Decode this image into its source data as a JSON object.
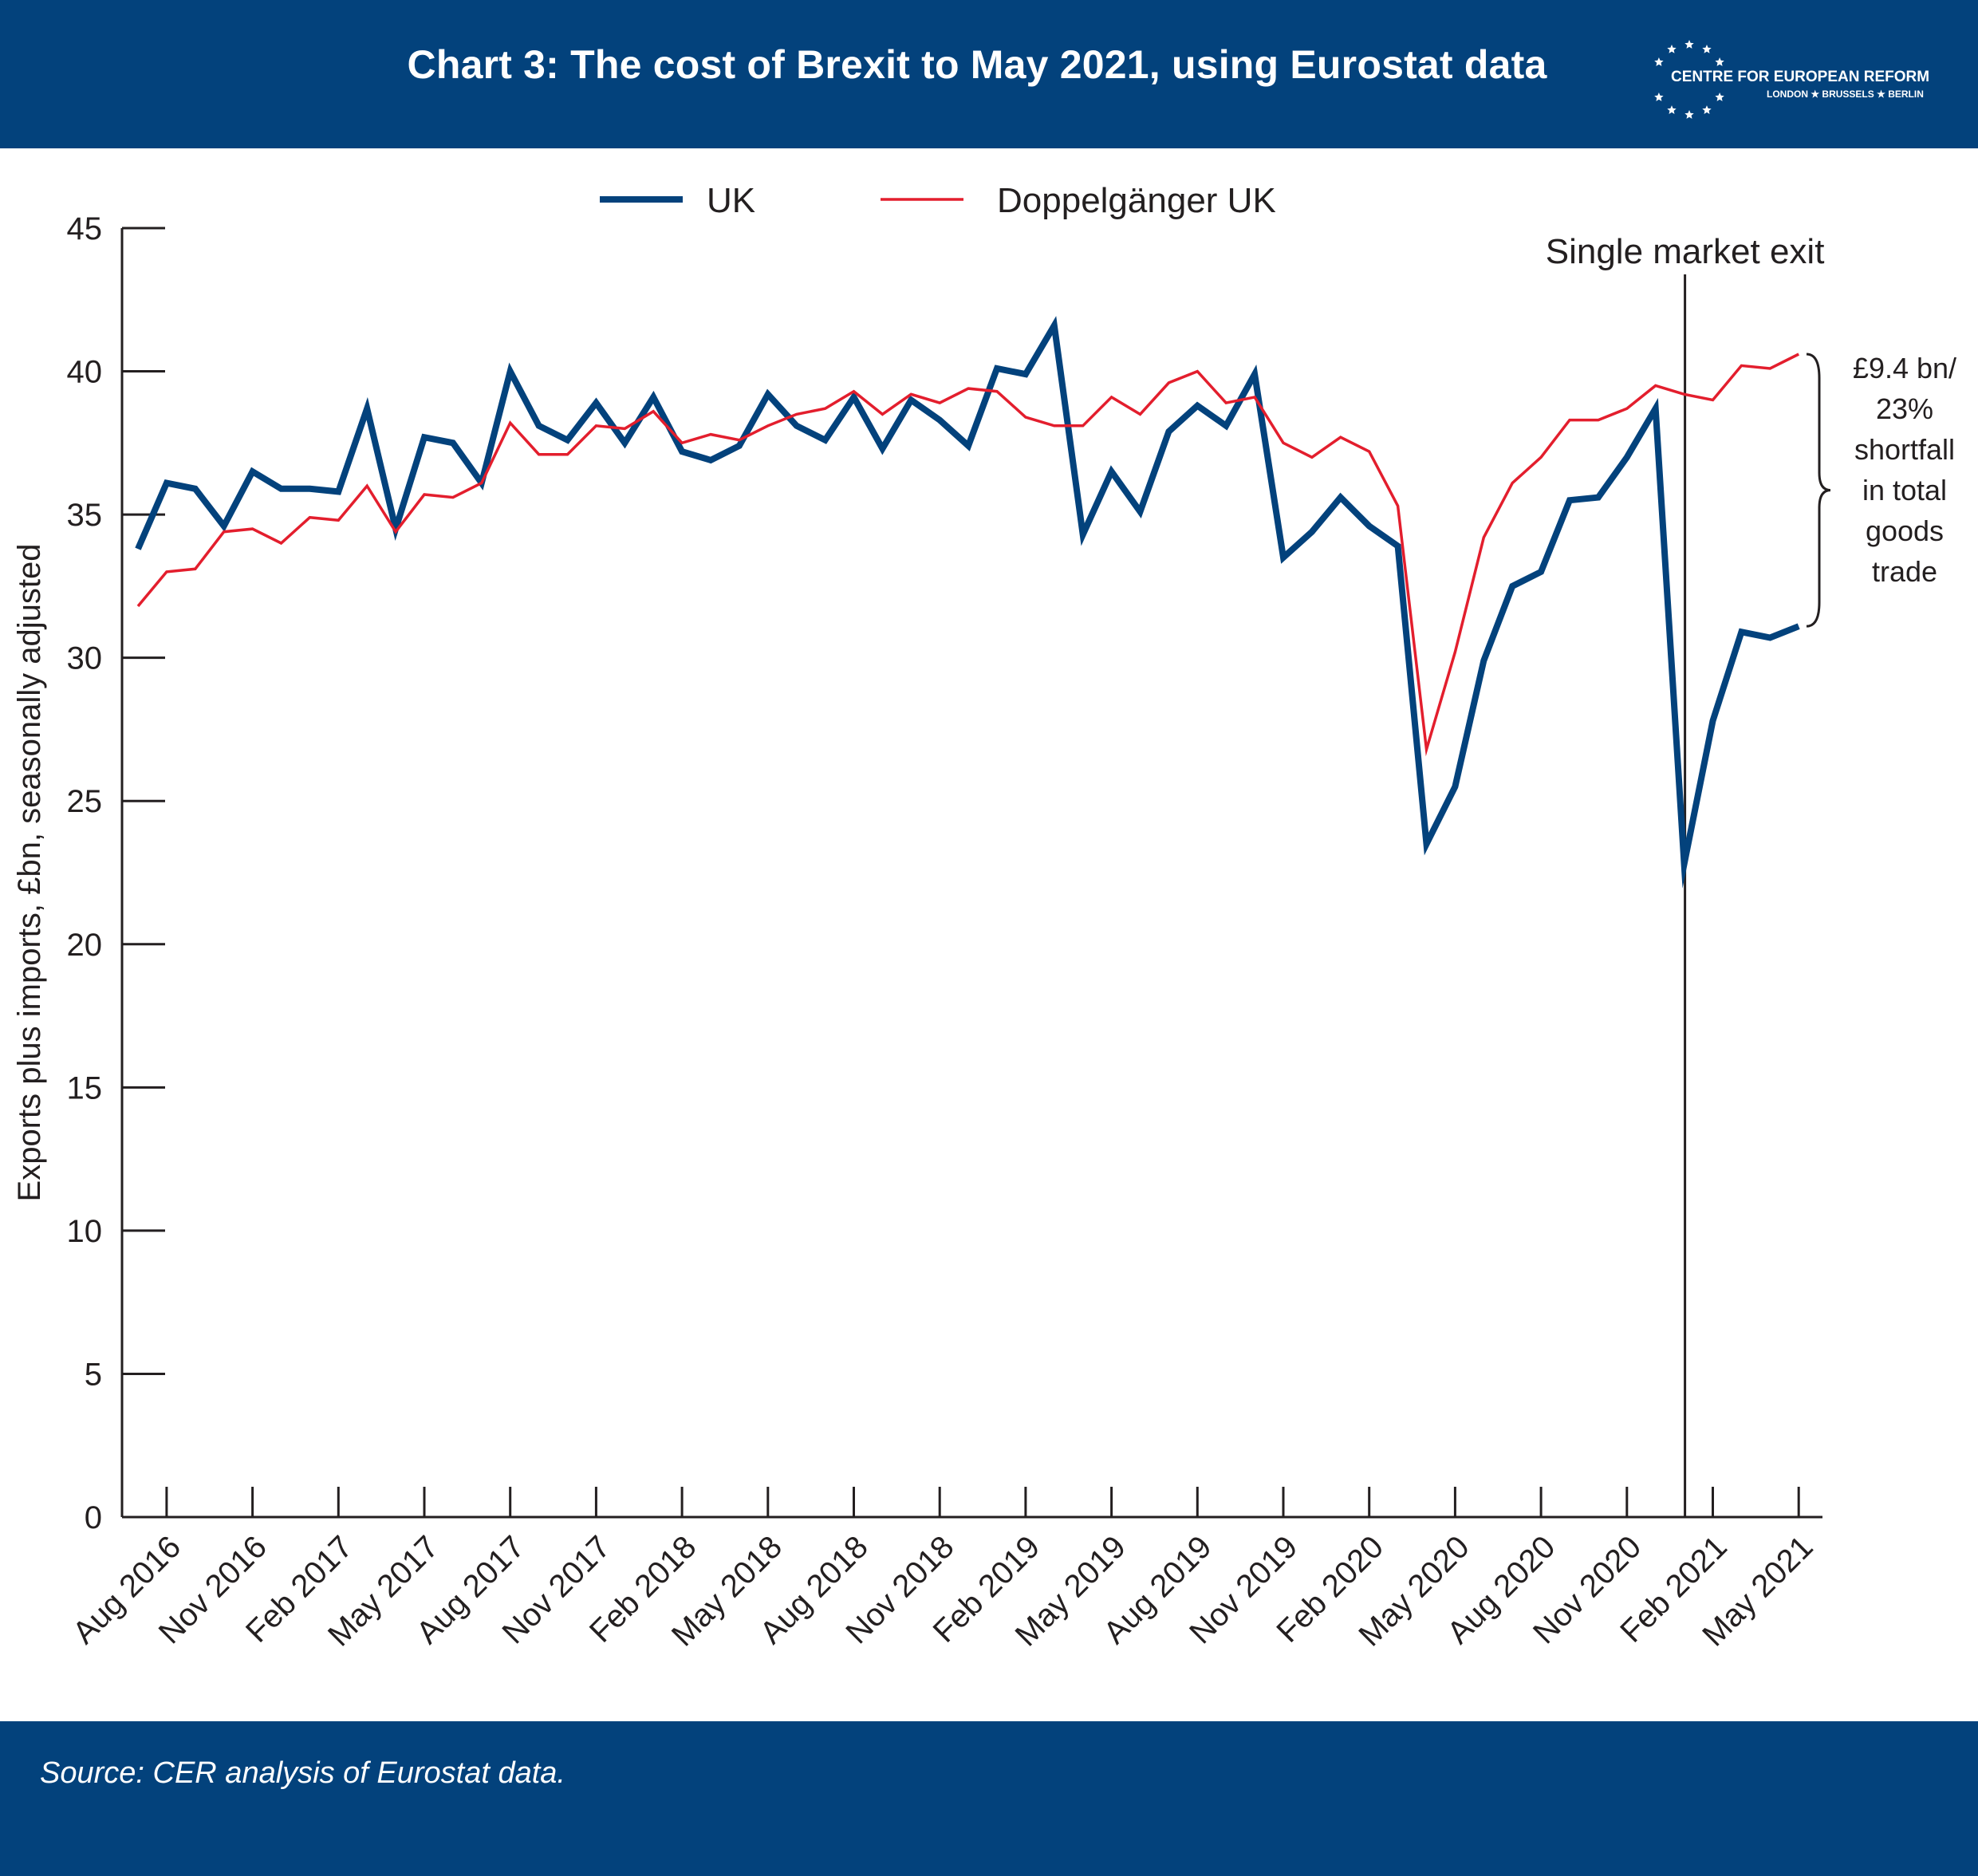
{
  "header": {
    "title": "Chart 3: The cost of Brexit to May 2021, using Eurostat data",
    "logo_name": "CENTRE FOR EUROPEAN REFORM",
    "logo_cities": "LONDON ★ BRUSSELS ★ BERLIN"
  },
  "footer": {
    "source": "Source: CER analysis of Eurostat data."
  },
  "colors": {
    "header_bg": "#03427c",
    "uk": "#03427c",
    "doppelganger": "#e31e2d",
    "axis": "#231f20"
  },
  "chart_data": {
    "type": "line",
    "title": "Chart 3: The cost of Brexit to May 2021, using Eurostat data",
    "xlabel": "",
    "ylabel": "Exports plus imports, £bn, seasonally adjusted",
    "ylim": [
      0,
      45
    ],
    "yticks": [
      "0",
      "5",
      "10",
      "15",
      "20",
      "25",
      "30",
      "35",
      "40",
      "45"
    ],
    "xticks": [
      "Aug 2016",
      "Nov 2016",
      "Feb 2017",
      "May 2017",
      "Aug 2017",
      "Nov 2017",
      "Feb 2018",
      "May 2018",
      "Aug 2018",
      "Nov 2018",
      "Feb 2019",
      "May 2019",
      "Aug 2019",
      "Nov 2019",
      "Feb 2020",
      "May 2020",
      "Aug 2020",
      "Nov 2020",
      "Feb 2021",
      "May 2021"
    ],
    "x": [
      "Jul 2016",
      "Aug 2016",
      "Sep 2016",
      "Oct 2016",
      "Nov 2016",
      "Dec 2016",
      "Jan 2017",
      "Feb 2017",
      "Mar 2017",
      "Apr 2017",
      "May 2017",
      "Jun 2017",
      "Jul 2017",
      "Aug 2017",
      "Sep 2017",
      "Oct 2017",
      "Nov 2017",
      "Dec 2017",
      "Jan 2018",
      "Feb 2018",
      "Mar 2018",
      "Apr 2018",
      "May 2018",
      "Jun 2018",
      "Jul 2018",
      "Aug 2018",
      "Sep 2018",
      "Oct 2018",
      "Nov 2018",
      "Dec 2018",
      "Jan 2019",
      "Feb 2019",
      "Mar 2019",
      "Apr 2019",
      "May 2019",
      "Jun 2019",
      "Jul 2019",
      "Aug 2019",
      "Sep 2019",
      "Oct 2019",
      "Nov 2019",
      "Dec 2019",
      "Jan 2020",
      "Feb 2020",
      "Mar 2020",
      "Apr 2020",
      "May 2020",
      "Jun 2020",
      "Jul 2020",
      "Aug 2020",
      "Sep 2020",
      "Oct 2020",
      "Nov 2020",
      "Dec 2020",
      "Jan 2021",
      "Feb 2021",
      "Mar 2021",
      "Apr 2021",
      "May 2021"
    ],
    "series": [
      {
        "name": "UK",
        "values": [
          33.8,
          36.1,
          35.9,
          34.6,
          36.5,
          35.9,
          35.9,
          35.8,
          38.7,
          34.5,
          37.7,
          37.5,
          36.1,
          40.0,
          38.1,
          37.6,
          38.9,
          37.5,
          39.1,
          37.2,
          36.9,
          37.4,
          39.2,
          38.1,
          37.6,
          39.1,
          37.3,
          39.0,
          38.3,
          37.4,
          40.1,
          39.9,
          41.6,
          34.3,
          36.5,
          35.1,
          37.9,
          38.8,
          38.1,
          39.9,
          33.5,
          34.4,
          35.6,
          34.6,
          33.9,
          23.5,
          25.5,
          29.9,
          32.5,
          33.0,
          35.5,
          35.6,
          37.0,
          38.7,
          22.8,
          27.8,
          30.9,
          30.7,
          31.1
        ]
      },
      {
        "name": "Doppelgänger UK",
        "values": [
          31.8,
          33.0,
          33.1,
          34.4,
          34.5,
          34.0,
          34.9,
          34.8,
          36.0,
          34.4,
          35.7,
          35.6,
          36.1,
          38.2,
          37.1,
          37.1,
          38.1,
          38.0,
          38.6,
          37.5,
          37.8,
          37.6,
          38.1,
          38.5,
          38.7,
          39.3,
          38.5,
          39.2,
          38.9,
          39.4,
          39.3,
          38.4,
          38.1,
          38.1,
          39.1,
          38.5,
          39.6,
          40.0,
          38.9,
          39.1,
          37.5,
          37.0,
          37.7,
          37.2,
          35.3,
          26.8,
          30.2,
          34.2,
          36.1,
          37.0,
          38.3,
          38.3,
          38.7,
          39.5,
          39.2,
          39.0,
          40.2,
          40.1,
          40.6
        ]
      }
    ],
    "legend": "top-center",
    "grid": false,
    "annotations": [
      {
        "label": "Single market exit",
        "at": "Jan 2021"
      },
      {
        "lines": [
          "£9.4 bn/",
          "23%",
          "shortfall",
          "in total",
          "goods",
          "trade"
        ],
        "at": "May 2021"
      }
    ]
  }
}
